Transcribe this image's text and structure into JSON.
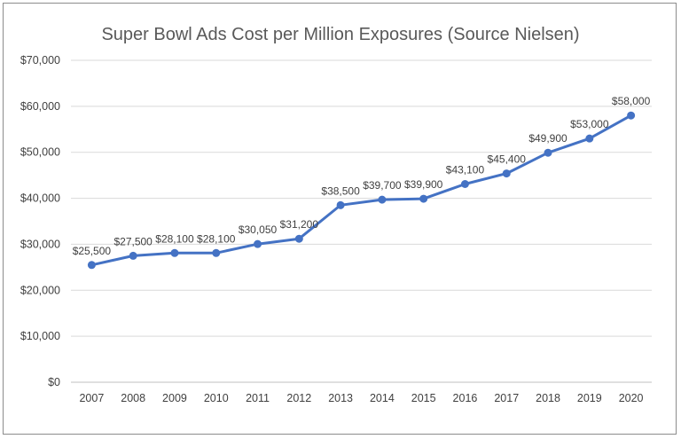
{
  "chart_data": {
    "type": "line",
    "title": "Super Bowl Ads Cost per Million Exposures (Source Nielsen)",
    "xlabel": "",
    "ylabel": "",
    "categories": [
      "2007",
      "2008",
      "2009",
      "2010",
      "2011",
      "2012",
      "2013",
      "2014",
      "2015",
      "2016",
      "2017",
      "2018",
      "2019",
      "2020"
    ],
    "series": [
      {
        "values": [
          25500,
          27500,
          28100,
          28100,
          30050,
          31200,
          38500,
          39700,
          39900,
          43100,
          45400,
          49900,
          53000,
          58000
        ],
        "data_labels": [
          "$25,500",
          "$27,500",
          "$28,100",
          "$28,100",
          "$30,050",
          "$31,200",
          "$38,500",
          "$39,700",
          "$39,900",
          "$43,100",
          "$45,400",
          "$49,900",
          "$53,000",
          "$58,000"
        ],
        "color": "#4472c4"
      }
    ],
    "ylim": [
      0,
      70000
    ],
    "yticks": [
      0,
      10000,
      20000,
      30000,
      40000,
      50000,
      60000,
      70000
    ],
    "ytick_labels": [
      "$0",
      "$10,000",
      "$20,000",
      "$30,000",
      "$40,000",
      "$50,000",
      "$60,000",
      "$70,000"
    ],
    "grid": "horizontal",
    "legend": "none"
  }
}
